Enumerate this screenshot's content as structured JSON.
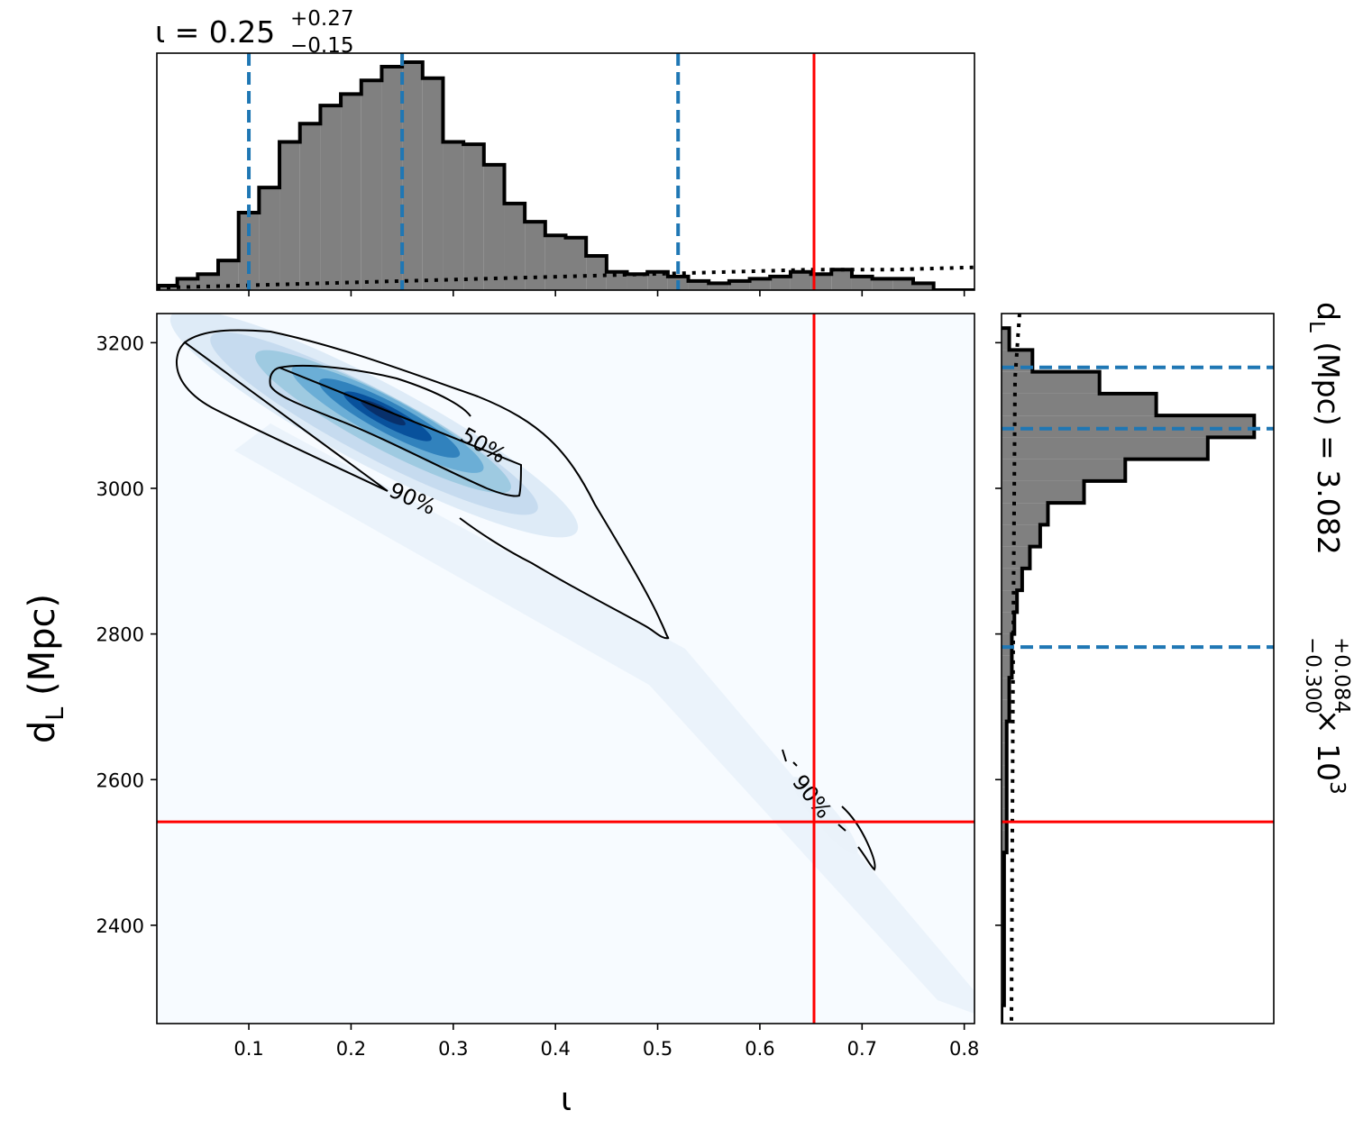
{
  "chart_data": {
    "type": "corner",
    "title_top": {
      "prefix": "ι = 0.25",
      "sup": "+0.27",
      "sub": "−0.15"
    },
    "title_right": {
      "prefix": "d",
      "prefix_sub": "L",
      "unit": " (Mpc) = 3.082",
      "sup": "+0.084",
      "sub": "−0.300",
      "suffix": " × 10",
      "exp": "3"
    },
    "xlabel": "ι",
    "ylabel": {
      "main": "d",
      "sub": "L",
      "unit": " (Mpc)"
    },
    "xlim": [
      0.01,
      0.81
    ],
    "ylim": [
      2265,
      3240
    ],
    "xticks": [
      0.1,
      0.2,
      0.3,
      0.4,
      0.5,
      0.6,
      0.7,
      0.8
    ],
    "xtick_labels": [
      "0.1",
      "0.2",
      "0.3",
      "0.4",
      "0.5",
      "0.6",
      "0.7",
      "0.8"
    ],
    "yticks": [
      2400,
      2600,
      2800,
      3000,
      3200
    ],
    "ytick_labels": [
      "2400",
      "2600",
      "2800",
      "3000",
      "3200"
    ],
    "injection": {
      "iota": 0.653,
      "dL": 2542
    },
    "iota_quantiles": [
      0.1,
      0.25,
      0.52
    ],
    "dL_quantiles": [
      2782,
      3082,
      3166
    ],
    "contour_labels": [
      "50%",
      "90%",
      "90%"
    ],
    "iota_hist": {
      "bin_edges": [
        0.01,
        0.03,
        0.05,
        0.07,
        0.09,
        0.11,
        0.13,
        0.15,
        0.17,
        0.19,
        0.21,
        0.23,
        0.25,
        0.27,
        0.29,
        0.31,
        0.33,
        0.35,
        0.37,
        0.39,
        0.41,
        0.43,
        0.45,
        0.47,
        0.49,
        0.51,
        0.53,
        0.55,
        0.57,
        0.59,
        0.61,
        0.63,
        0.65,
        0.67,
        0.69,
        0.71,
        0.73,
        0.75,
        0.77,
        0.79,
        0.81
      ],
      "heights": [
        0.02,
        0.05,
        0.07,
        0.13,
        0.34,
        0.45,
        0.65,
        0.73,
        0.81,
        0.86,
        0.92,
        0.98,
        1.0,
        0.93,
        0.65,
        0.64,
        0.55,
        0.38,
        0.3,
        0.24,
        0.23,
        0.15,
        0.08,
        0.07,
        0.08,
        0.06,
        0.04,
        0.03,
        0.04,
        0.05,
        0.06,
        0.08,
        0.07,
        0.09,
        0.06,
        0.05,
        0.05,
        0.03,
        0.0,
        0.0
      ],
      "prior_dotted": [
        0.01,
        0.02,
        0.03,
        0.04,
        0.05,
        0.06,
        0.07,
        0.08,
        0.09,
        0.09,
        0.1
      ]
    },
    "dL_hist": {
      "bin_edges": [
        3220,
        3190,
        3160,
        3130,
        3100,
        3070,
        3040,
        3010,
        2980,
        2950,
        2920,
        2890,
        2860,
        2830,
        2800,
        2770,
        2740,
        2710,
        2680,
        2650,
        2620,
        2590,
        2560,
        2530,
        2500,
        2470,
        2440,
        2410,
        2380,
        2350,
        2320,
        2290,
        2265
      ],
      "heights": [
        0.03,
        0.12,
        0.38,
        0.6,
        0.98,
        0.8,
        0.48,
        0.32,
        0.18,
        0.15,
        0.11,
        0.08,
        0.06,
        0.05,
        0.04,
        0.04,
        0.03,
        0.03,
        0.02,
        0.02,
        0.02,
        0.02,
        0.02,
        0.02,
        0.01,
        0.01,
        0.01,
        0.01,
        0.01,
        0.01,
        0.01,
        0.0
      ]
    },
    "grid": false,
    "colormap": "Blues",
    "colors": {
      "hist_fill": "#808080",
      "hist_edge": "#000000",
      "quantile": "#1f77b4",
      "injection": "#ff0000",
      "density_max": "#08306b",
      "density_min": "#f7fbff"
    }
  }
}
